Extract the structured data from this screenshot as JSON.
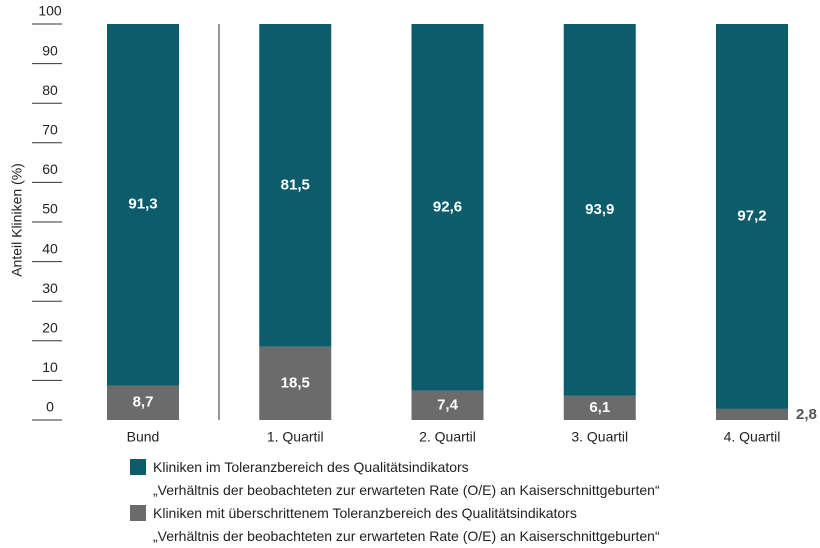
{
  "chart_data": {
    "type": "stacked_bar",
    "y_label": "Anteil Kliniken (%)",
    "categories": [
      "Bund",
      "1. Quartil",
      "2. Quartil",
      "3. Quartil",
      "4. Quartil"
    ],
    "series": [
      {
        "name": "Kliniken mit überschrittenem Toleranzbereich des Qualitätsindikators\n„Verhältnis der beobachteten zur erwarteten Rate (O/E) an Kaiserschnittgeburten“",
        "color": "#6b6b6b",
        "values": [
          8.7,
          18.5,
          7.4,
          6.1,
          2.8
        ],
        "value_labels": [
          "8,7",
          "18,5",
          "7,4",
          "6,1",
          "2,8"
        ]
      },
      {
        "name": "Kliniken im Toleranzbereich des Qualitätsindikators\n„Verhältnis der beobachteten zur erwarteten Rate (O/E) an Kaiserschnittgeburten“",
        "color": "#0c5c6b",
        "values": [
          91.3,
          81.5,
          92.6,
          93.9,
          97.2
        ],
        "value_labels": [
          "91,3",
          "81,5",
          "92,6",
          "93,9",
          "97,2"
        ]
      }
    ],
    "ylim": [
      0,
      100
    ],
    "yticks": [
      0,
      10,
      20,
      30,
      40,
      50,
      60,
      70,
      80,
      90,
      100
    ]
  }
}
